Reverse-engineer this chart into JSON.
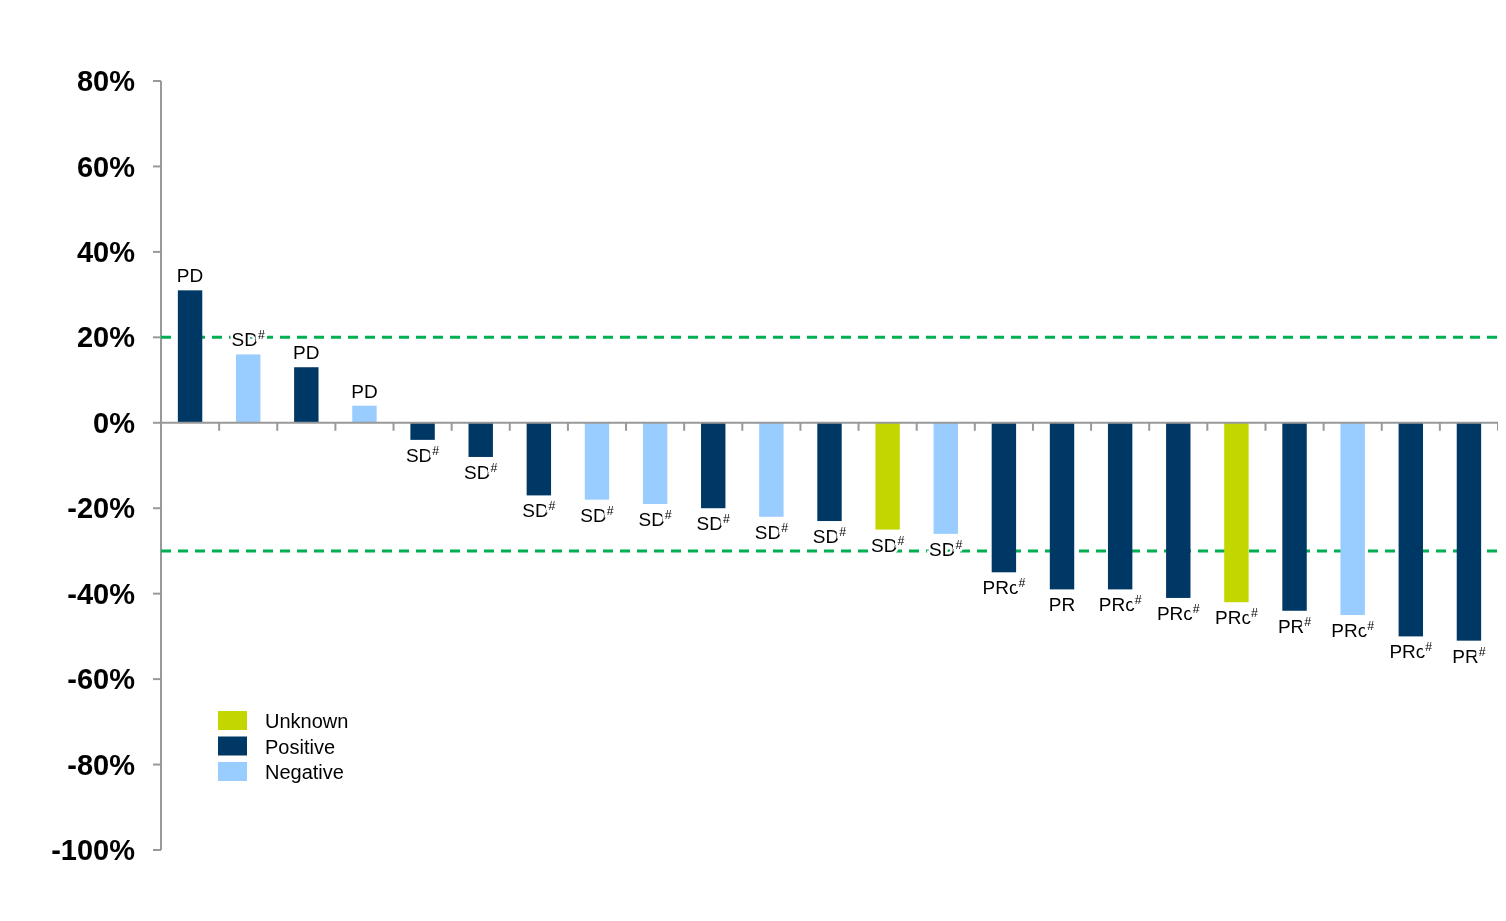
{
  "chart_data": {
    "type": "bar",
    "categories": [
      null,
      null,
      null,
      null,
      null,
      null,
      null,
      null,
      null,
      null,
      null,
      null,
      null,
      null,
      null,
      null,
      null,
      null,
      null,
      null,
      null,
      null,
      null
    ],
    "series": [
      {
        "name": "Unknown",
        "color": "#c4d600",
        "values": [
          null,
          null,
          null,
          null,
          null,
          null,
          null,
          null,
          null,
          null,
          null,
          null,
          -25,
          null,
          null,
          null,
          null,
          null,
          -42,
          null,
          null,
          null,
          null
        ],
        "value_labels": [
          null,
          null,
          null,
          null,
          null,
          null,
          null,
          null,
          null,
          null,
          null,
          null,
          "SD$^{#}$",
          null,
          null,
          null,
          null,
          null,
          "PRc$^{#}$",
          null,
          null,
          null,
          null
        ]
      },
      {
        "name": "Positive",
        "color": "#003865",
        "values": [
          31,
          null,
          13,
          null,
          -4,
          -8,
          -17,
          null,
          null,
          -20,
          null,
          -23,
          null,
          null,
          -35,
          -39,
          -39,
          -41,
          null,
          -44,
          null,
          -50,
          -51
        ],
        "value_labels": [
          "PD",
          null,
          "PD",
          null,
          "SD$^{#}$",
          "SD$^{#}$",
          "SD$^{#}$",
          null,
          null,
          "SD$^{#}$",
          null,
          "SD$^{#}$",
          null,
          null,
          "PRc$^{#}$",
          "PR",
          "PRc$^{#}$",
          "PRc$^{#}$",
          null,
          "PR$^{#}$",
          null,
          "PRc$^{#}$",
          "PR$^{#}$"
        ]
      },
      {
        "name": "Negative",
        "color": "#99ccff",
        "values": [
          null,
          16,
          null,
          4,
          null,
          null,
          null,
          -18,
          -19,
          null,
          -22,
          null,
          null,
          -26,
          null,
          null,
          null,
          null,
          null,
          null,
          -45,
          null,
          null
        ],
        "value_labels": [
          null,
          "SD$^{#}$",
          null,
          "PD",
          null,
          null,
          null,
          "SD$^{#}$",
          "SD$^{#}$",
          null,
          "SD$^{#}$",
          null,
          null,
          "SD$^{#}$",
          null,
          null,
          null,
          null,
          null,
          null,
          "PRc$^{#}$",
          null,
          null
        ]
      }
    ],
    "ylim": [
      -100,
      80
    ],
    "yticks": [
      {
        "value": -100,
        "label": "-100%"
      },
      {
        "value": -80,
        "label": "-80%"
      },
      {
        "value": -60,
        "label": "-60%"
      },
      {
        "value": -40,
        "label": "-40%"
      },
      {
        "value": -20,
        "label": "-20%"
      },
      {
        "value": 0,
        "label": "0%"
      },
      {
        "value": 20,
        "label": "20%"
      },
      {
        "value": 40,
        "label": "40%"
      },
      {
        "value": 60,
        "label": "60%"
      },
      {
        "value": 80,
        "label": "80%"
      }
    ],
    "ref_lines": [
      {
        "axis": "y",
        "value": 20,
        "color": "#00b050",
        "line_style": "dashed"
      },
      {
        "axis": "y",
        "value": -30,
        "color": "#00b050",
        "line_style": "dashed"
      }
    ],
    "legend": "bottom left",
    "grid": false
  }
}
